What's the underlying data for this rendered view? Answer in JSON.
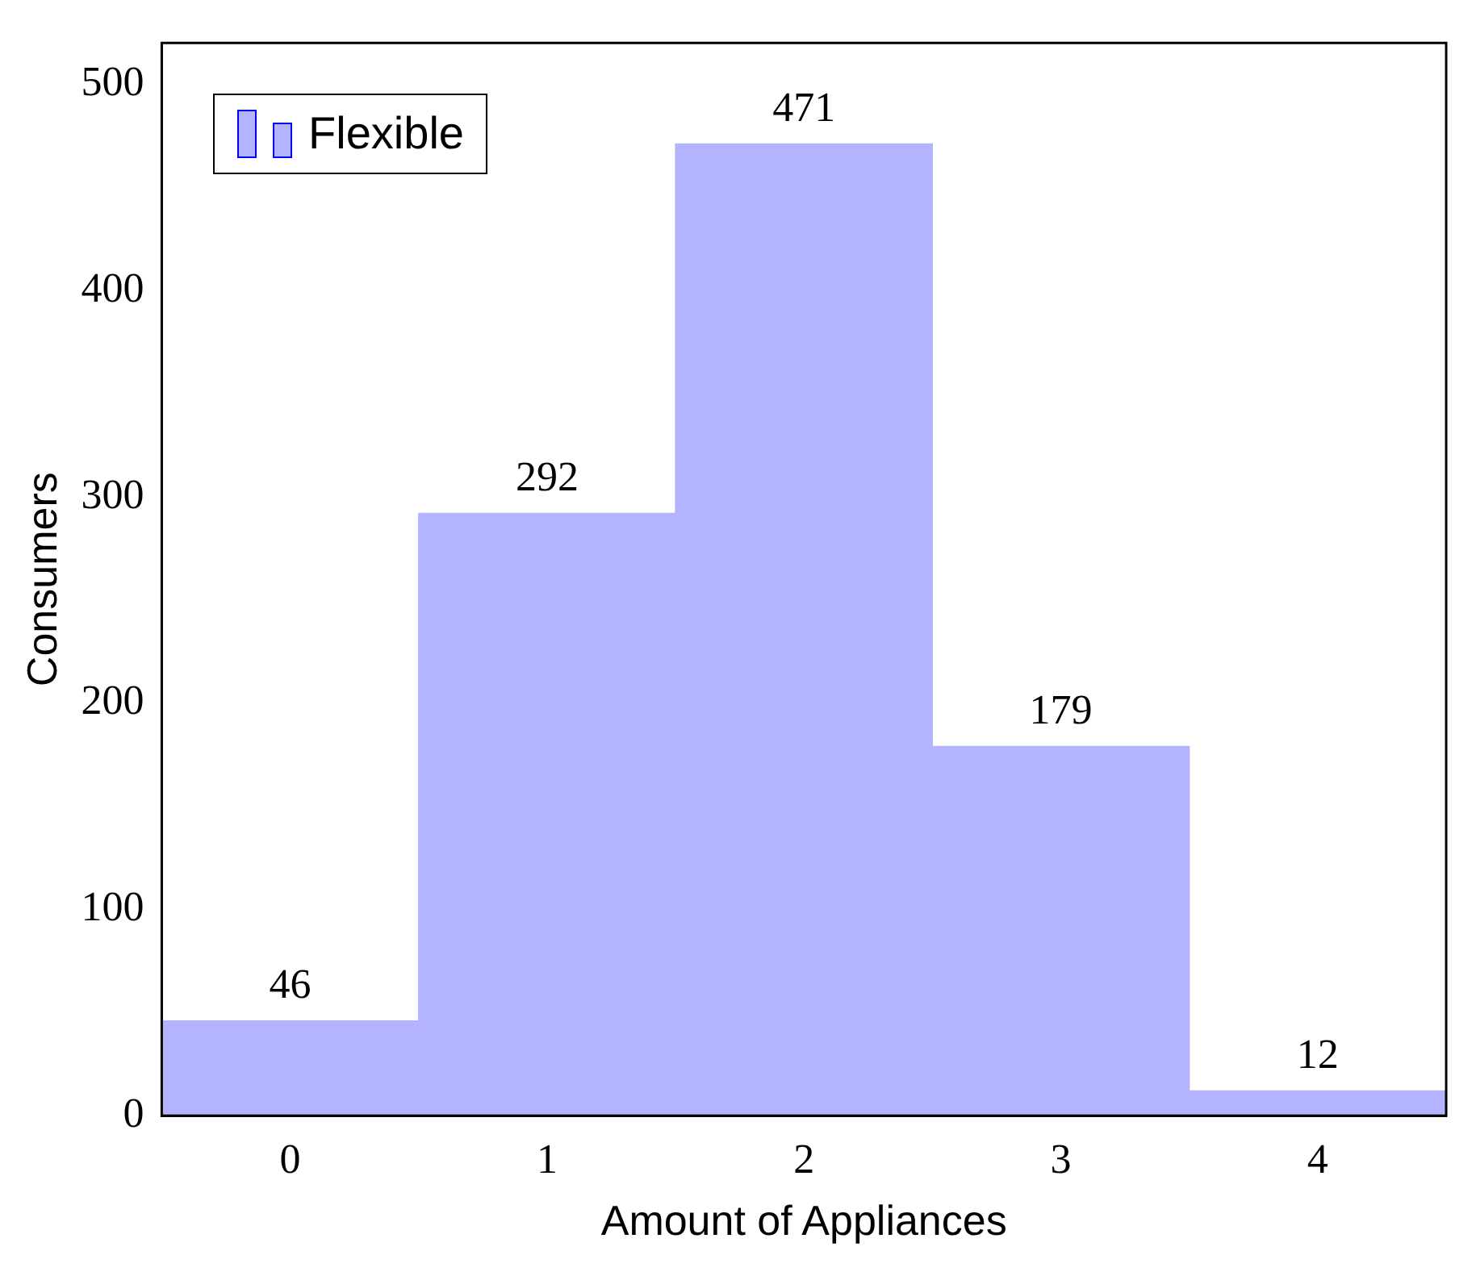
{
  "chart_data": {
    "type": "bar",
    "xlabel": "Amount of Appliances",
    "ylabel": "Consumers",
    "categories": [
      "0",
      "1",
      "2",
      "3",
      "4"
    ],
    "series": [
      {
        "name": "Flexible",
        "color": "#b3b3ff",
        "values": [
          46,
          292,
          471,
          179,
          12
        ]
      }
    ],
    "ylim": [
      0,
      520
    ],
    "yticks": [
      0,
      100,
      200,
      300,
      400,
      500
    ],
    "grid": false,
    "legend": "top left",
    "data_labels": true
  }
}
